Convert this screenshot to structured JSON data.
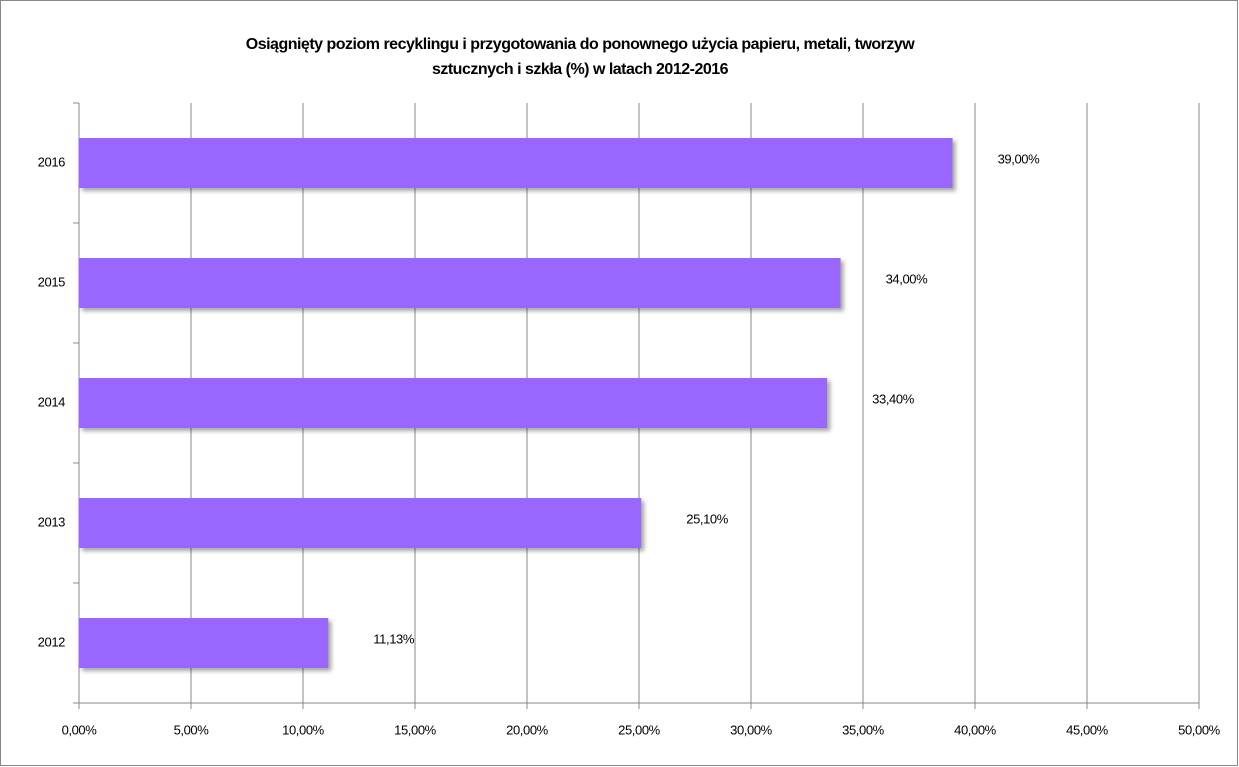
{
  "chart_data": {
    "type": "bar",
    "orientation": "horizontal",
    "title": [
      "Osiągnięty poziom recyklingu i przygotowania do ponownego użycia papieru, metali, tworzyw",
      "sztucznych  i szkła (%) w latach  2012-2016"
    ],
    "categories": [
      "2012",
      "2013",
      "2014",
      "2015",
      "2016"
    ],
    "values": [
      11.13,
      25.1,
      33.4,
      34,
      39
    ],
    "value_labels": [
      "11,13%",
      "25,10%",
      "33,40%",
      "34,00%",
      "39,00%"
    ],
    "color": "#9966ff",
    "xlim": [
      0,
      50
    ],
    "xticks": [
      {
        "value": 0,
        "label": "0,00%"
      },
      {
        "value": 5,
        "label": "5,00%"
      },
      {
        "value": 10,
        "label": "10,00%"
      },
      {
        "value": 15,
        "label": "15,00%"
      },
      {
        "value": 20,
        "label": "20,00%"
      },
      {
        "value": 25,
        "label": "25,00%"
      },
      {
        "value": 30,
        "label": "30,00%"
      },
      {
        "value": 35,
        "label": "35,00%"
      },
      {
        "value": 40,
        "label": "40,00%"
      },
      {
        "value": 45,
        "label": "45,00%"
      },
      {
        "value": 50,
        "label": "50,00%"
      }
    ],
    "grid": true
  }
}
